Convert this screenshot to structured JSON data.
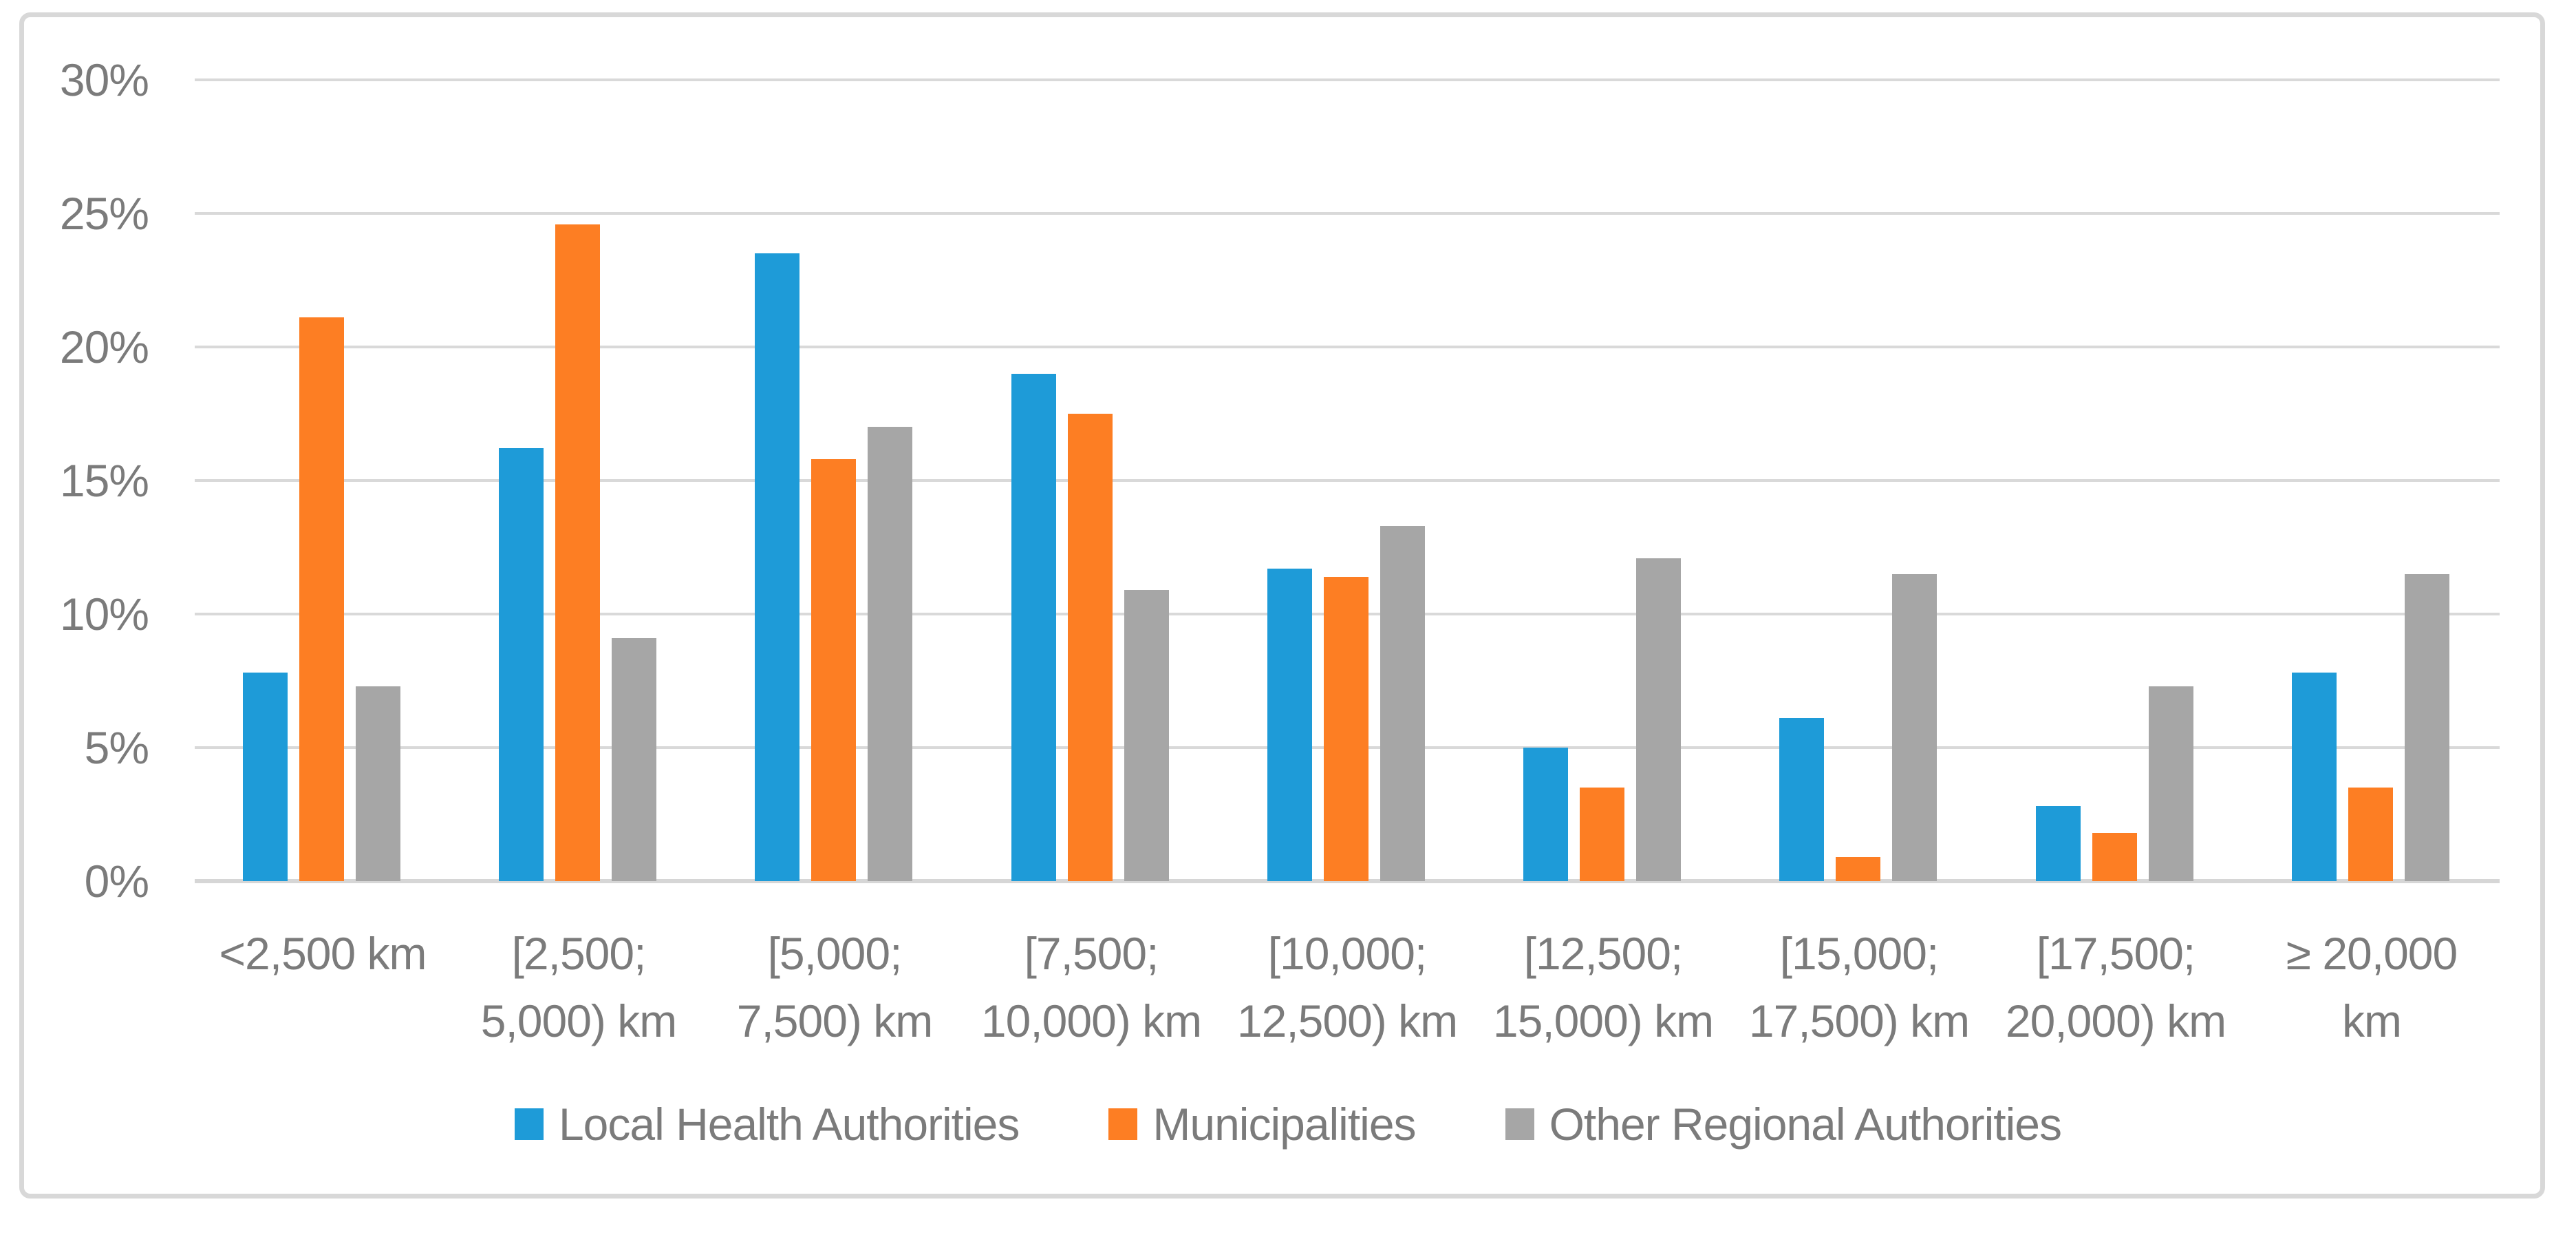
{
  "chart_data": {
    "type": "bar",
    "title": "",
    "xlabel": "",
    "ylabel": "",
    "ylim": [
      0,
      30
    ],
    "grid": true,
    "legend_position": "bottom",
    "y_ticks": [
      {
        "value": 0,
        "label": "0%"
      },
      {
        "value": 5,
        "label": "5%"
      },
      {
        "value": 10,
        "label": "10%"
      },
      {
        "value": 15,
        "label": "15%"
      },
      {
        "value": 20,
        "label": "20%"
      },
      {
        "value": 25,
        "label": "25%"
      },
      {
        "value": 30,
        "label": "30%"
      }
    ],
    "categories": [
      {
        "label": "<2,500 km",
        "lines": [
          "<2,500 km"
        ]
      },
      {
        "label": "[2,500; 5,000) km",
        "lines": [
          "[2,500;",
          "5,000) km"
        ]
      },
      {
        "label": "[5,000; 7,500) km",
        "lines": [
          "[5,000;",
          "7,500) km"
        ]
      },
      {
        "label": "[7,500; 10,000) km",
        "lines": [
          "[7,500;",
          "10,000) km"
        ]
      },
      {
        "label": "[10,000; 12,500) km",
        "lines": [
          "[10,000;",
          "12,500) km"
        ]
      },
      {
        "label": "[12,500; 15,000) km",
        "lines": [
          "[12,500;",
          "15,000) km"
        ]
      },
      {
        "label": "[15,000; 17,500) km",
        "lines": [
          "[15,000;",
          "17,500) km"
        ]
      },
      {
        "label": "[17,500; 20,000) km",
        "lines": [
          "[17,500;",
          "20,000) km"
        ]
      },
      {
        "label": "≥ 20,000 km",
        "lines": [
          "≥ 20,000",
          "km"
        ]
      }
    ],
    "series": [
      {
        "name": "Local Health Authorities",
        "color": "#1e9bd8",
        "values": [
          7.8,
          16.2,
          23.5,
          19.0,
          11.7,
          5.0,
          6.1,
          2.8,
          7.8
        ]
      },
      {
        "name": "Municipalities",
        "color": "#fd7e23",
        "values": [
          21.1,
          24.6,
          15.8,
          17.5,
          11.4,
          3.5,
          0.9,
          1.8,
          3.5
        ]
      },
      {
        "name": "Other Regional Authorities",
        "color": "#a6a6a6",
        "values": [
          7.3,
          9.1,
          17.0,
          10.9,
          13.3,
          12.1,
          11.5,
          7.3,
          11.5
        ]
      }
    ],
    "style_colors": {
      "gridline": "#d9d9d9",
      "axis_line": "#d6d6d6",
      "tick_text": "#7b7b7b",
      "frame_border": "#d8d8d8",
      "background": "#ffffff"
    }
  }
}
